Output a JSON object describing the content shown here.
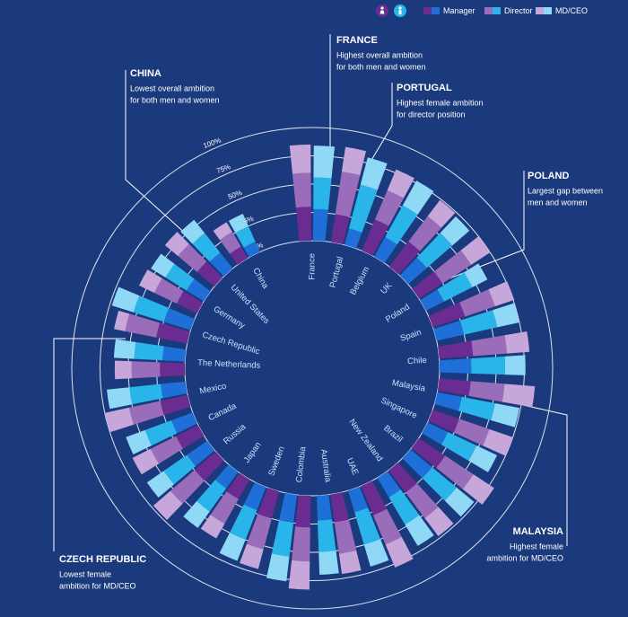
{
  "chart_data": {
    "type": "radial-stacked-bar",
    "categories": [
      "France",
      "Portugal",
      "Belgium",
      "UK",
      "Poland",
      "Spain",
      "Chile",
      "Malaysia",
      "Singapore",
      "Brazil",
      "New Zealand",
      "UAE",
      "Australia",
      "Colombia",
      "Sweden",
      "Japan",
      "Russia",
      "Canada",
      "Mexico",
      "The Netherlands",
      "Czech Republic",
      "Germany",
      "United States",
      "China"
    ],
    "series": [
      {
        "name": "Manager",
        "female": {
          "color": "#6a2c91",
          "values": [
            30,
            25,
            30,
            28,
            25,
            30,
            30,
            28,
            25,
            28,
            25,
            28,
            25,
            28,
            25,
            20,
            25,
            22,
            25,
            22,
            28,
            20,
            20,
            12
          ]
        },
        "male": {
          "color": "#1f6fd8",
          "values": [
            28,
            15,
            20,
            22,
            18,
            25,
            28,
            22,
            20,
            25,
            20,
            20,
            22,
            25,
            22,
            18,
            22,
            20,
            22,
            20,
            25,
            18,
            18,
            10
          ]
        }
      },
      {
        "name": "Director",
        "female": {
          "color": "#9a6dba",
          "values": [
            30,
            38,
            28,
            28,
            30,
            28,
            30,
            30,
            28,
            30,
            28,
            28,
            28,
            30,
            28,
            25,
            28,
            25,
            28,
            25,
            28,
            22,
            22,
            15
          ]
        },
        "male": {
          "color": "#29b5ea",
          "values": [
            28,
            40,
            32,
            30,
            28,
            30,
            30,
            30,
            28,
            28,
            28,
            30,
            28,
            30,
            28,
            25,
            25,
            25,
            28,
            25,
            28,
            22,
            22,
            15
          ]
        }
      },
      {
        "name": "MD/CEO",
        "female": {
          "color": "#c7a6da",
          "values": [
            25,
            22,
            20,
            18,
            20,
            18,
            20,
            27,
            22,
            22,
            20,
            22,
            18,
            25,
            18,
            15,
            20,
            18,
            22,
            15,
            10,
            15,
            15,
            10
          ]
        },
        "male": {
          "color": "#8fd9f6",
          "values": [
            28,
            25,
            25,
            20,
            15,
            20,
            18,
            22,
            20,
            20,
            22,
            20,
            20,
            22,
            20,
            18,
            18,
            18,
            20,
            18,
            20,
            15,
            15,
            12
          ]
        }
      }
    ],
    "rlim": [
      0,
      100
    ],
    "rticks": [
      {
        "value": 0,
        "label": "0%"
      },
      {
        "value": 25,
        "label": "25%"
      },
      {
        "value": 50,
        "label": "50%"
      },
      {
        "value": 75,
        "label": "75%"
      },
      {
        "value": 100,
        "label": "100%"
      }
    ],
    "grid": true,
    "annotations": [
      {
        "title": "FRANCE",
        "lines": [
          "Highest overall ambition",
          "for both men and women"
        ]
      },
      {
        "title": "PORTUGAL",
        "lines": [
          "Highest female ambition",
          "for director position"
        ]
      },
      {
        "title": "POLAND",
        "lines": [
          "Largest gap between",
          "men and women"
        ]
      },
      {
        "title": "CHINA",
        "lines": [
          "Lowest overall ambition",
          "for both men and women"
        ]
      },
      {
        "title": "MALAYSIA",
        "lines": [
          "Highest female",
          "ambition for MD/CEO"
        ]
      },
      {
        "title": "CZECH REPUBLIC",
        "lines": [
          "Lowest female",
          "ambition for MD/CEO"
        ]
      }
    ]
  }
}
